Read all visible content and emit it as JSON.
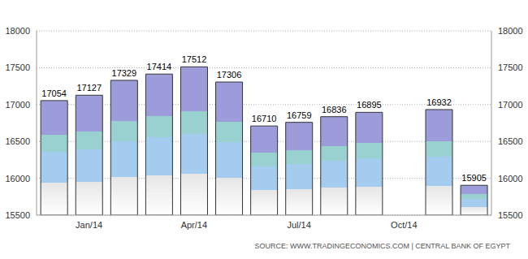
{
  "chart_data": {
    "type": "bar",
    "categories": [
      null,
      "Jan/14",
      null,
      null,
      "Apr/14",
      null,
      null,
      "Jul/14",
      null,
      null,
      "Oct/14",
      null,
      null
    ],
    "values": [
      17054,
      17127,
      17329,
      17414,
      17512,
      17306,
      16710,
      16759,
      16836,
      16895,
      null,
      16932,
      15905
    ],
    "color": "#9c9cdb",
    "ylim": [
      15500,
      18000
    ],
    "yticks": [
      15500,
      16000,
      16500,
      17000,
      17500,
      18000
    ],
    "grid": true,
    "data_labels": true,
    "annotations": [
      "SOURCE: WWW.TRADINGECONOMICS.COM | CENTRAL BANK OF EGYPT"
    ]
  }
}
